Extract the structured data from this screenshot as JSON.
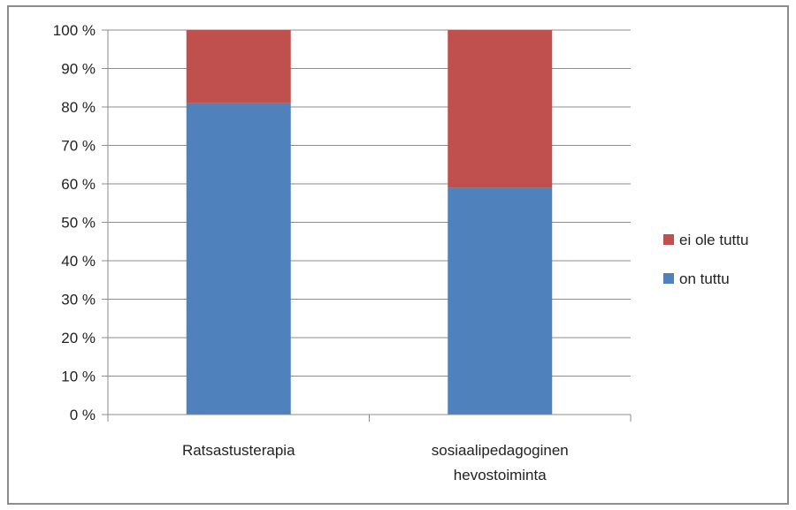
{
  "chart_data": {
    "type": "bar",
    "stacked": true,
    "percent": true,
    "categories": [
      "Ratsastusterapia",
      "sosiaalipedagoginen hevostoiminta"
    ],
    "series": [
      {
        "name": "on tuttu",
        "values": [
          81,
          59
        ],
        "color": "#4f81bd"
      },
      {
        "name": "ei ole tuttu",
        "values": [
          19,
          41
        ],
        "color": "#c0504d"
      }
    ],
    "y_ticks": [
      "0 %",
      "10 %",
      "20 %",
      "30 %",
      "40 %",
      "50 %",
      "60 %",
      "70 %",
      "80 %",
      "90 %",
      "100 %"
    ],
    "ylim": [
      0,
      100
    ],
    "grid": true,
    "legend": {
      "position": "right",
      "items": [
        "ei ole tuttu",
        "on tuttu"
      ]
    },
    "title": "",
    "xlabel": "",
    "ylabel": ""
  }
}
